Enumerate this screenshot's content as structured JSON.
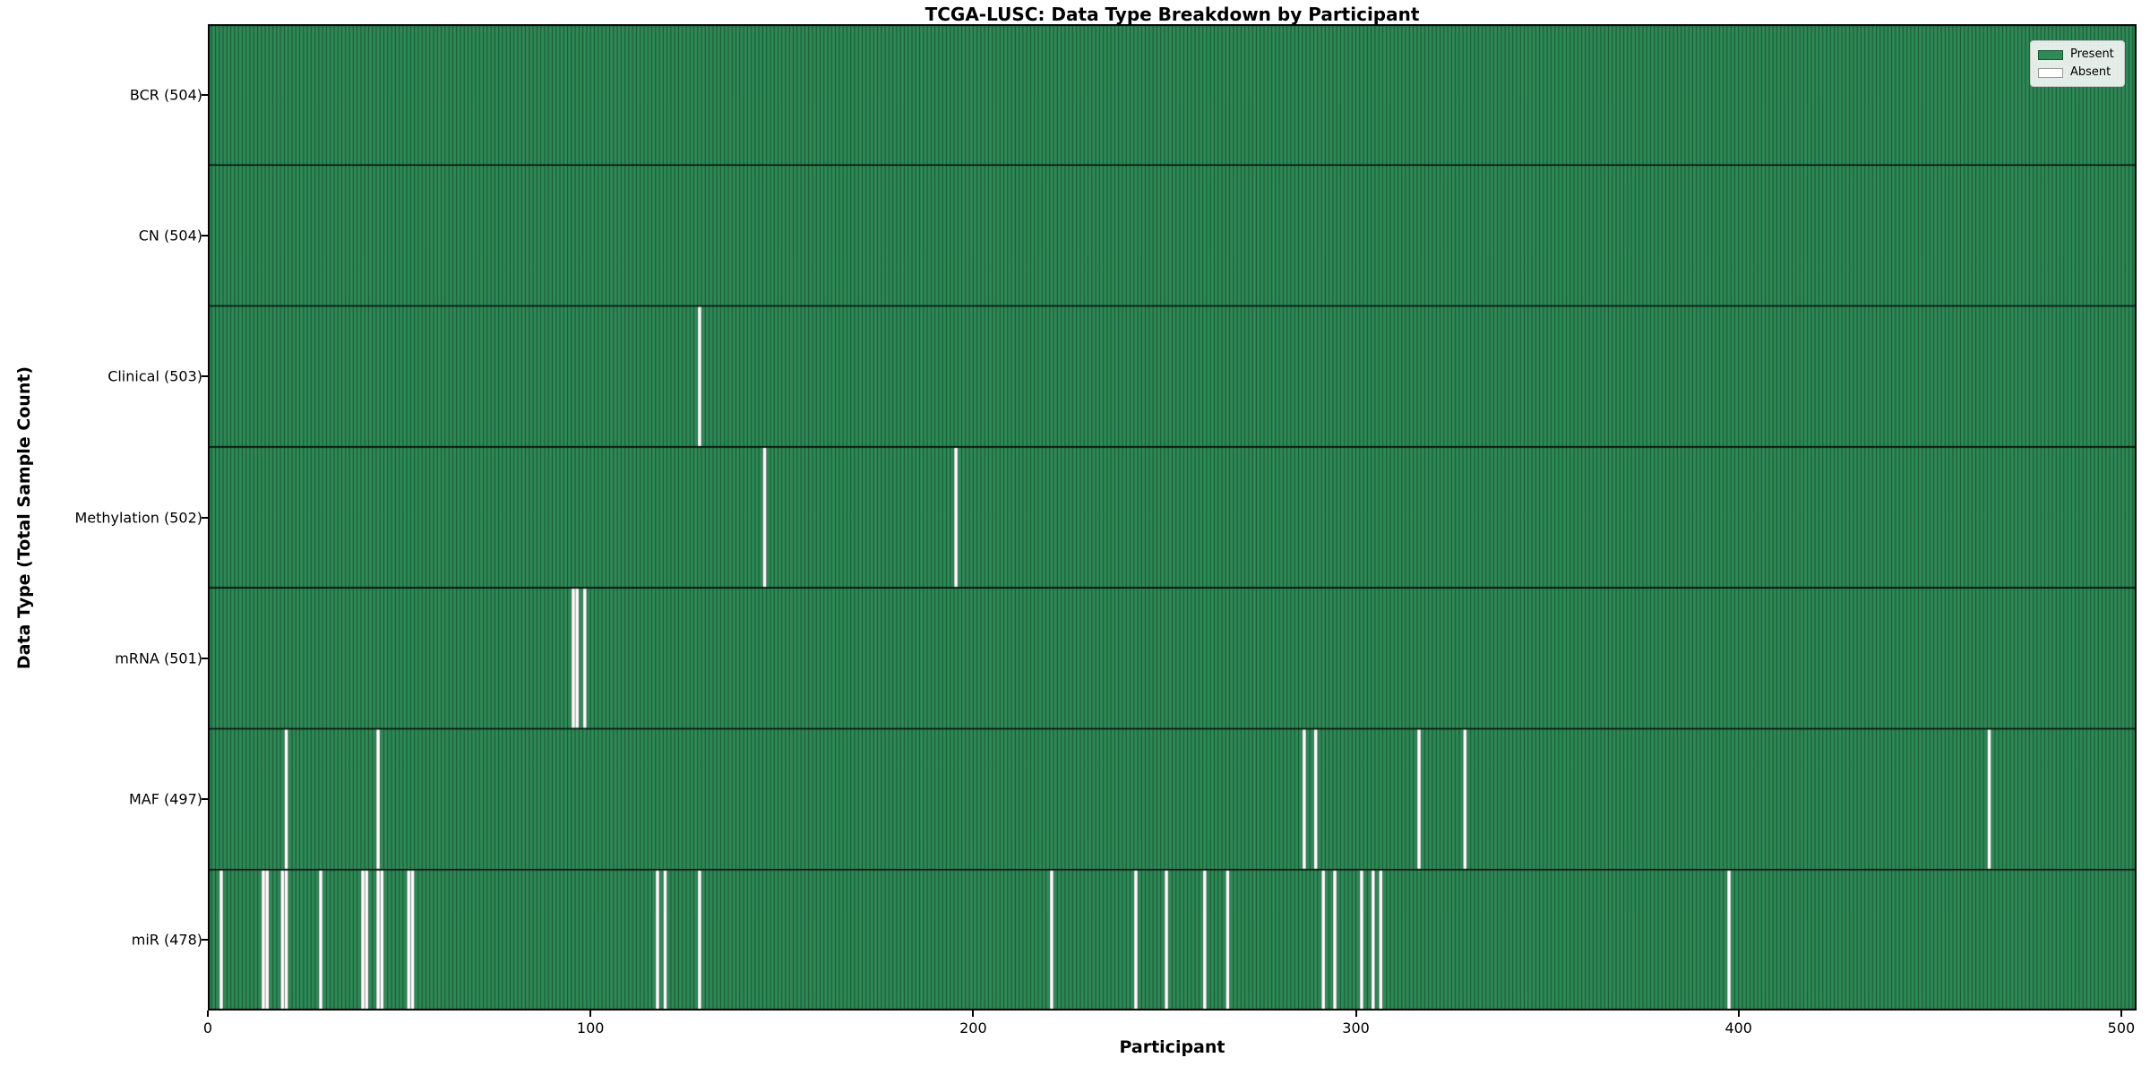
{
  "chart_data": {
    "type": "heatmap",
    "title": "TCGA-LUSC: Data Type Breakdown by Participant",
    "xlabel": "Participant",
    "ylabel": "Data Type (Total Sample Count)",
    "x_ticks": [
      0,
      100,
      200,
      300,
      400,
      500
    ],
    "n_participants": 504,
    "x_range": [
      0,
      504
    ],
    "grid": false,
    "legend_position": "upper right",
    "legend": [
      {
        "label": "Present",
        "color": "#2E8B57"
      },
      {
        "label": "Absent",
        "color": "#FFFFFF"
      }
    ],
    "colors": {
      "present": "#2E8B57",
      "absent": "#FFFFFF",
      "bar_edge": "rgba(0,0,0,0.55)",
      "row_divider": "rgba(0,0,0,0.9)",
      "spine": "#000000"
    },
    "rows": [
      {
        "label": "BCR (504)",
        "data_type": "BCR",
        "present_count": 504,
        "absent_participants": []
      },
      {
        "label": "CN (504)",
        "data_type": "CN",
        "present_count": 504,
        "absent_participants": []
      },
      {
        "label": "Clinical (503)",
        "data_type": "Clinical",
        "present_count": 503,
        "absent_participants": [
          128
        ]
      },
      {
        "label": "Methylation (502)",
        "data_type": "Methylation",
        "present_count": 502,
        "absent_participants": [
          145,
          195
        ]
      },
      {
        "label": "mRNA (501)",
        "data_type": "mRNA",
        "present_count": 501,
        "absent_participants": [
          95,
          96,
          98
        ]
      },
      {
        "label": "MAF (497)",
        "data_type": "MAF",
        "present_count": 497,
        "absent_participants": [
          20,
          44,
          286,
          289,
          316,
          328,
          465
        ]
      },
      {
        "label": "miR (478)",
        "data_type": "miR",
        "present_count": 478,
        "absent_participants": [
          3,
          14,
          15,
          19,
          20,
          29,
          40,
          41,
          44,
          45,
          52,
          53,
          117,
          119,
          128,
          220,
          242,
          250,
          260,
          266,
          291,
          294,
          301,
          304,
          306,
          397
        ]
      }
    ]
  }
}
